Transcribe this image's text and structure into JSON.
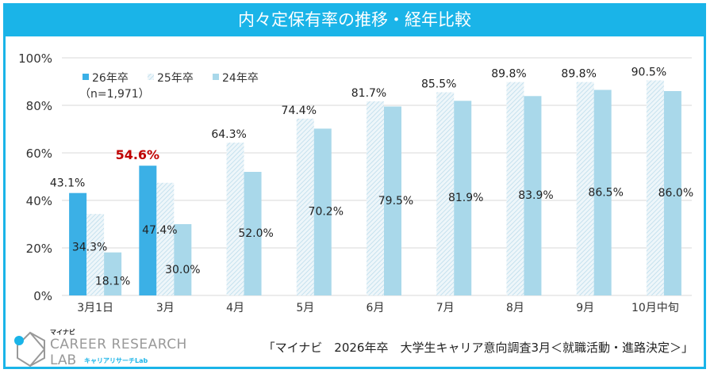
{
  "header": {
    "title": "内々定保有率の推移・経年比較"
  },
  "source": "「マイナビ　2026年卒　大学生キャリア意向調査3月＜就職活動・進路決定＞」",
  "logo": {
    "brand": "マイナビ",
    "name": "CAREER RESEARCH",
    "lab": "LAB",
    "kana": "キャリアリサーチLab"
  },
  "colors": {
    "s26": "#3bb0e6",
    "s25": "#cfe6f1",
    "s24": "#a9d8ea",
    "highlight": "#c00000",
    "frame": "#1ab4e8"
  },
  "chart_data": {
    "type": "bar",
    "title": "内々定保有率の推移・経年比較",
    "categories": [
      "3月1日",
      "3月",
      "4月",
      "5月",
      "6月",
      "7月",
      "8月",
      "9月",
      "10月中旬"
    ],
    "series": [
      {
        "name": "26年卒",
        "note": "（n=1,971）",
        "values": [
          43.1,
          54.6,
          null,
          null,
          null,
          null,
          null,
          null,
          null
        ]
      },
      {
        "name": "25年卒",
        "values": [
          34.3,
          47.4,
          64.3,
          74.4,
          81.7,
          85.5,
          89.8,
          89.8,
          90.5
        ]
      },
      {
        "name": "24年卒",
        "values": [
          18.1,
          30.0,
          52.0,
          70.2,
          79.5,
          81.9,
          83.9,
          86.5,
          86.0
        ]
      }
    ],
    "highlight_label": "54.6%",
    "yticks": [
      "0%",
      "20%",
      "40%",
      "60%",
      "80%",
      "100%"
    ],
    "ylim": [
      0,
      100
    ],
    "grid": true,
    "legend": "top-left"
  }
}
